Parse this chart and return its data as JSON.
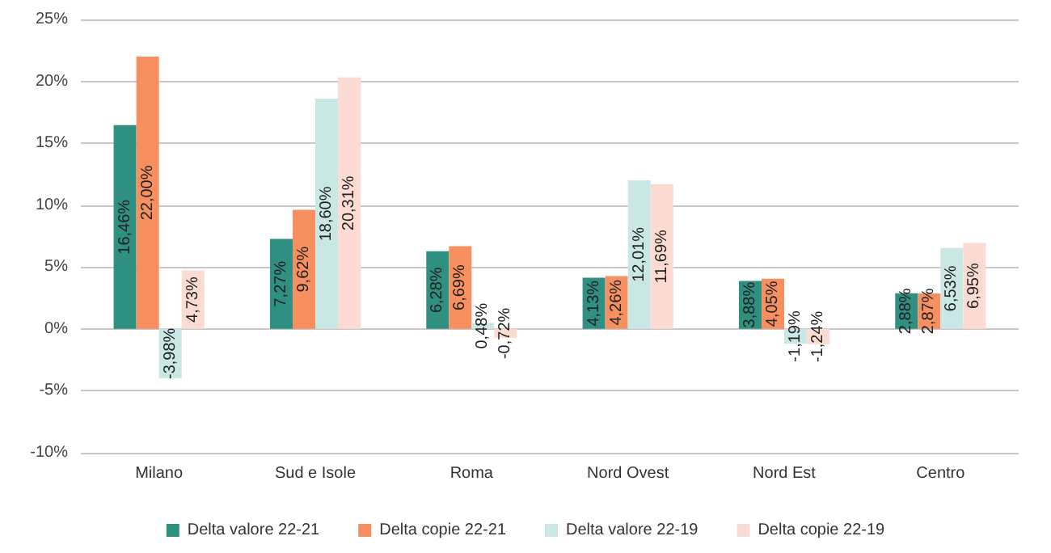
{
  "chart_data": {
    "type": "bar",
    "categories": [
      "Milano",
      "Sud e Isole",
      "Roma",
      "Nord Ovest",
      "Nord Est",
      "Centro"
    ],
    "series": [
      {
        "name": "Delta valore 22-21",
        "color": "#2f8f80",
        "values": [
          16.46,
          7.27,
          6.28,
          4.13,
          3.88,
          2.88
        ],
        "value_labels": [
          "16,46%",
          "7,27%",
          "6,28%",
          "4,13%",
          "3,88%",
          "2,88%"
        ]
      },
      {
        "name": "Delta copie 22-21",
        "color": "#f79060",
        "values": [
          22.0,
          9.62,
          6.69,
          4.26,
          4.05,
          2.87
        ],
        "value_labels": [
          "22,00%",
          "9,62%",
          "6,69%",
          "4,26%",
          "4,05%",
          "2,87%"
        ]
      },
      {
        "name": "Delta valore 22-19",
        "color": "#c9e7e3",
        "values": [
          -3.98,
          18.6,
          0.48,
          12.01,
          -1.19,
          6.53
        ],
        "value_labels": [
          "-3,98%",
          "18,60%",
          "0,48%",
          "12,01%",
          "-1,19%",
          "6,53%"
        ]
      },
      {
        "name": "Delta copie 22-19",
        "color": "#fcdcd2",
        "values": [
          4.73,
          20.31,
          -0.72,
          11.69,
          -1.24,
          6.95
        ],
        "value_labels": [
          "4,73%",
          "20,31%",
          "-0,72%",
          "11,69%",
          "-1,24%",
          "6,95%"
        ]
      }
    ],
    "ylim": [
      -10,
      25
    ],
    "yticks": [
      {
        "value": -10,
        "label": "-10%"
      },
      {
        "value": -5,
        "label": "-5%"
      },
      {
        "value": 0,
        "label": "0%"
      },
      {
        "value": 5,
        "label": "5%"
      },
      {
        "value": 10,
        "label": "10%"
      },
      {
        "value": 15,
        "label": "15%"
      },
      {
        "value": 20,
        "label": "20%"
      },
      {
        "value": 25,
        "label": "25%"
      }
    ],
    "grid": "y",
    "legend": "bottom"
  }
}
